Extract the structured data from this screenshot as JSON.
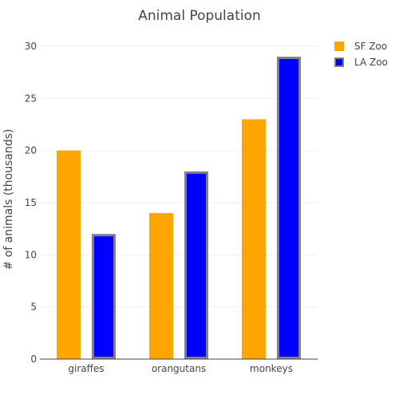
{
  "chart_data": {
    "type": "bar",
    "title": "Animal Population",
    "xlabel": "",
    "ylabel": "# of animals (thousands)",
    "categories": [
      "giraffes",
      "orangutans",
      "monkeys"
    ],
    "series": [
      {
        "name": "SF Zoo",
        "values": [
          20,
          14,
          23
        ],
        "color": "#FFA500",
        "outline": null
      },
      {
        "name": "LA Zoo",
        "values": [
          12,
          18,
          29
        ],
        "color": "#0000FF",
        "outline": "#808080"
      }
    ],
    "ylim": [
      0,
      30
    ],
    "yticks": [
      0,
      5,
      10,
      15,
      20,
      25,
      30
    ],
    "grid": true,
    "legend_position": "top-right"
  },
  "colors": {
    "grid": "#eeeeee",
    "axis_line": "#444444",
    "text": "#444444"
  }
}
